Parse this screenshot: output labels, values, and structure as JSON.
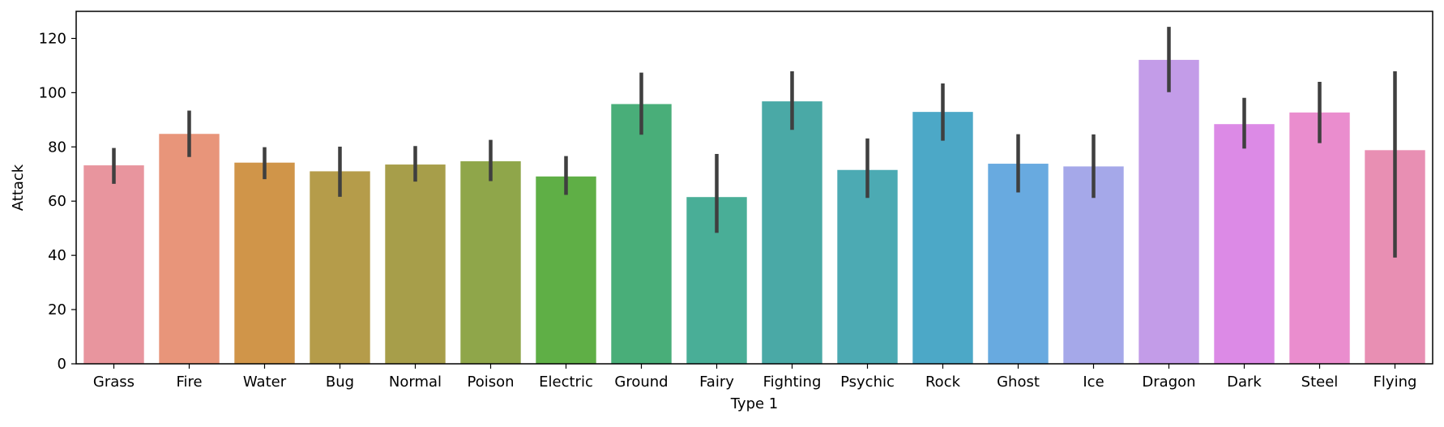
{
  "chart_data": {
    "type": "bar",
    "title": "",
    "xlabel": "Type 1",
    "ylabel": "Attack",
    "ylim": [
      0,
      130
    ],
    "yticks": [
      0,
      20,
      40,
      60,
      80,
      100,
      120
    ],
    "grid": false,
    "legend": "none",
    "categories": [
      "Grass",
      "Fire",
      "Water",
      "Bug",
      "Normal",
      "Poison",
      "Electric",
      "Ground",
      "Fairy",
      "Fighting",
      "Psychic",
      "Rock",
      "Ghost",
      "Ice",
      "Dragon",
      "Dark",
      "Steel",
      "Flying"
    ],
    "values": [
      73.2,
      84.8,
      74.2,
      71.0,
      73.5,
      74.7,
      69.1,
      95.8,
      61.5,
      96.8,
      71.5,
      92.9,
      73.8,
      72.8,
      112.1,
      88.4,
      92.7,
      78.8
    ],
    "error_low": [
      66.4,
      76.3,
      68.1,
      61.6,
      67.2,
      67.4,
      62.3,
      84.5,
      48.3,
      86.3,
      61.2,
      82.3,
      63.2,
      61.2,
      100.2,
      79.4,
      81.4,
      39.2
    ],
    "error_high": [
      79.6,
      93.4,
      79.9,
      80.1,
      80.3,
      82.6,
      76.6,
      107.4,
      77.4,
      107.9,
      83.1,
      103.4,
      84.7,
      84.6,
      124.3,
      98.1,
      104.0,
      107.9
    ],
    "colors": [
      "#e8959e",
      "#e8957a",
      "#d09549",
      "#b59c4a",
      "#a79e4a",
      "#8fa64a",
      "#5faf46",
      "#49ae79",
      "#49ae97",
      "#4aa9a6",
      "#4caab3",
      "#4ca8c7",
      "#68aae0",
      "#a5a8e9",
      "#c39ce8",
      "#dc8ae6",
      "#ea8dce",
      "#e88fb3"
    ],
    "error_color": "#3f3f3f"
  }
}
